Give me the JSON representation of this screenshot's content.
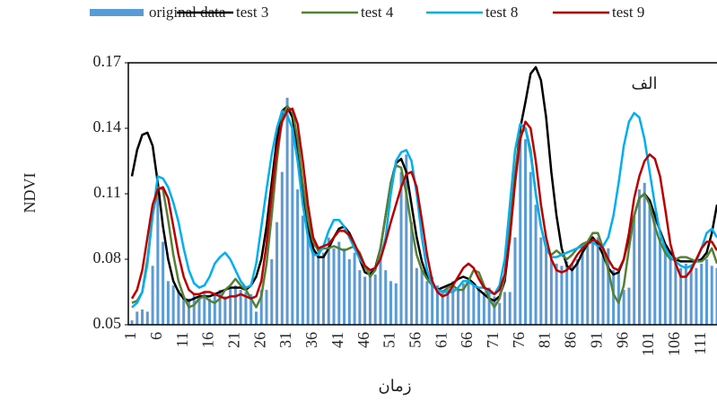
{
  "chart_data": {
    "type": "combo",
    "x_label": "زمان",
    "y_label": "NDVI",
    "annotation": "الف",
    "categories": [
      "1",
      null,
      null,
      null,
      null,
      "6",
      null,
      null,
      null,
      null,
      "11",
      null,
      null,
      null,
      null,
      "16",
      null,
      null,
      null,
      null,
      "21",
      null,
      null,
      null,
      null,
      "26",
      null,
      null,
      null,
      null,
      "31",
      null,
      null,
      null,
      null,
      "36",
      null,
      null,
      null,
      null,
      "41",
      null,
      null,
      null,
      null,
      "46",
      null,
      null,
      null,
      null,
      "51",
      null,
      null,
      null,
      null,
      "56",
      null,
      null,
      null,
      null,
      "61",
      null,
      null,
      null,
      null,
      "66",
      null,
      null,
      null,
      null,
      "71",
      null,
      null,
      null,
      null,
      "76",
      null,
      null,
      null,
      null,
      "81",
      null,
      null,
      null,
      null,
      "86",
      null,
      null,
      null,
      null,
      "91",
      null,
      null,
      null,
      null,
      "96",
      null,
      null,
      null,
      null,
      "101",
      null,
      null,
      null,
      null,
      "106",
      null,
      null,
      null,
      null,
      "111",
      null,
      null,
      null
    ],
    "ylim": [
      0.05,
      0.17
    ],
    "yticks": [
      0.05,
      0.08,
      0.11,
      0.14,
      0.17
    ],
    "series": [
      {
        "name": "original data",
        "type": "bar",
        "color": "#5b9bd5",
        "values": [
          0.052,
          0.056,
          0.057,
          0.056,
          0.077,
          0.112,
          0.088,
          0.07,
          0.068,
          0.066,
          0.063,
          0.062,
          0.064,
          0.063,
          0.065,
          0.062,
          0.064,
          0.066,
          0.063,
          0.067,
          0.068,
          0.066,
          0.065,
          0.064,
          0.056,
          0.066,
          0.066,
          0.08,
          0.097,
          0.12,
          0.154,
          0.14,
          0.112,
          0.1,
          0.098,
          0.09,
          0.085,
          0.083,
          0.09,
          0.085,
          0.088,
          0.085,
          0.08,
          0.083,
          0.075,
          0.072,
          0.075,
          0.073,
          0.082,
          0.075,
          0.07,
          0.069,
          0.12,
          0.128,
          0.097,
          0.076,
          0.075,
          0.07,
          0.072,
          0.068,
          0.066,
          0.068,
          0.07,
          0.067,
          0.069,
          0.07,
          0.068,
          0.066,
          0.065,
          0.067,
          0.063,
          0.06,
          0.065,
          0.065,
          0.09,
          0.14,
          0.135,
          0.12,
          0.105,
          0.09,
          0.085,
          0.08,
          0.078,
          0.077,
          0.079,
          0.078,
          0.08,
          0.085,
          0.088,
          0.09,
          0.09,
          0.085,
          0.085,
          0.075,
          0.075,
          0.066,
          0.067,
          0.1,
          0.112,
          0.115,
          0.105,
          0.1,
          0.09,
          0.085,
          0.08,
          0.078,
          0.076,
          0.078,
          0.077,
          0.076,
          0.078,
          0.08,
          0.077,
          0.076
        ]
      },
      {
        "name": "test 3",
        "type": "line",
        "color": "#000000",
        "values": [
          0.118,
          0.13,
          0.137,
          0.138,
          0.132,
          0.115,
          0.095,
          0.08,
          0.07,
          0.065,
          0.062,
          0.061,
          0.062,
          0.063,
          0.063,
          0.063,
          0.064,
          0.065,
          0.066,
          0.067,
          0.067,
          0.067,
          0.066,
          0.068,
          0.072,
          0.08,
          0.095,
          0.115,
          0.135,
          0.148,
          0.15,
          0.145,
          0.13,
          0.11,
          0.095,
          0.085,
          0.081,
          0.081,
          0.085,
          0.09,
          0.094,
          0.095,
          0.092,
          0.087,
          0.08,
          0.074,
          0.073,
          0.076,
          0.085,
          0.1,
          0.115,
          0.124,
          0.126,
          0.12,
          0.105,
          0.09,
          0.079,
          0.072,
          0.068,
          0.066,
          0.067,
          0.068,
          0.069,
          0.071,
          0.072,
          0.071,
          0.069,
          0.066,
          0.064,
          0.062,
          0.061,
          0.063,
          0.07,
          0.09,
          0.118,
          0.14,
          0.152,
          0.165,
          0.168,
          0.162,
          0.145,
          0.12,
          0.1,
          0.085,
          0.077,
          0.075,
          0.078,
          0.083,
          0.087,
          0.09,
          0.087,
          0.082,
          0.076,
          0.073,
          0.074,
          0.08,
          0.09,
          0.1,
          0.108,
          0.11,
          0.107,
          0.1,
          0.093,
          0.087,
          0.083,
          0.08,
          0.079,
          0.079,
          0.079,
          0.079,
          0.08,
          0.083,
          0.092,
          0.105
        ]
      },
      {
        "name": "test 4",
        "type": "line",
        "color": "#548235",
        "values": [
          0.06,
          0.061,
          0.065,
          0.08,
          0.1,
          0.113,
          0.112,
          0.098,
          0.082,
          0.07,
          0.063,
          0.058,
          0.059,
          0.062,
          0.063,
          0.061,
          0.06,
          0.062,
          0.066,
          0.068,
          0.071,
          0.068,
          0.066,
          0.062,
          0.058,
          0.063,
          0.078,
          0.1,
          0.125,
          0.145,
          0.15,
          0.148,
          0.135,
          0.115,
          0.098,
          0.088,
          0.084,
          0.085,
          0.085,
          0.086,
          0.085,
          0.084,
          0.085,
          0.086,
          0.083,
          0.077,
          0.072,
          0.075,
          0.085,
          0.1,
          0.115,
          0.123,
          0.122,
          0.11,
          0.095,
          0.082,
          0.075,
          0.071,
          0.068,
          0.066,
          0.065,
          0.067,
          0.068,
          0.066,
          0.066,
          0.07,
          0.075,
          0.074,
          0.068,
          0.062,
          0.058,
          0.062,
          0.072,
          0.095,
          0.12,
          0.137,
          0.14,
          0.13,
          0.11,
          0.095,
          0.085,
          0.082,
          0.084,
          0.082,
          0.08,
          0.082,
          0.085,
          0.087,
          0.088,
          0.092,
          0.092,
          0.085,
          0.075,
          0.064,
          0.06,
          0.068,
          0.085,
          0.1,
          0.108,
          0.11,
          0.105,
          0.095,
          0.088,
          0.083,
          0.08,
          0.08,
          0.081,
          0.081,
          0.08,
          0.079,
          0.079,
          0.081,
          0.085,
          0.078
        ]
      },
      {
        "name": "test 8",
        "type": "line",
        "color": "#00b0f0",
        "values": [
          0.058,
          0.06,
          0.065,
          0.078,
          0.1,
          0.118,
          0.117,
          0.113,
          0.106,
          0.097,
          0.085,
          0.075,
          0.069,
          0.067,
          0.068,
          0.072,
          0.078,
          0.081,
          0.083,
          0.08,
          0.075,
          0.07,
          0.067,
          0.068,
          0.078,
          0.095,
          0.112,
          0.128,
          0.14,
          0.148,
          0.146,
          0.14,
          0.125,
          0.105,
          0.09,
          0.082,
          0.082,
          0.086,
          0.093,
          0.098,
          0.098,
          0.095,
          0.09,
          0.085,
          0.08,
          0.077,
          0.075,
          0.076,
          0.08,
          0.09,
          0.11,
          0.125,
          0.129,
          0.13,
          0.125,
          0.11,
          0.09,
          0.075,
          0.068,
          0.066,
          0.065,
          0.065,
          0.065,
          0.067,
          0.07,
          0.07,
          0.068,
          0.067,
          0.067,
          0.065,
          0.064,
          0.068,
          0.08,
          0.105,
          0.13,
          0.142,
          0.14,
          0.128,
          0.11,
          0.095,
          0.085,
          0.081,
          0.081,
          0.082,
          0.083,
          0.084,
          0.085,
          0.086,
          0.087,
          0.088,
          0.086,
          0.086,
          0.09,
          0.1,
          0.115,
          0.132,
          0.143,
          0.147,
          0.145,
          0.135,
          0.12,
          0.105,
          0.092,
          0.085,
          0.081,
          0.079,
          0.077,
          0.076,
          0.077,
          0.079,
          0.085,
          0.092,
          0.094,
          0.09
        ]
      },
      {
        "name": "test 9",
        "type": "line",
        "color": "#c00000",
        "values": [
          0.062,
          0.066,
          0.075,
          0.09,
          0.105,
          0.112,
          0.113,
          0.108,
          0.095,
          0.082,
          0.072,
          0.066,
          0.064,
          0.064,
          0.065,
          0.065,
          0.064,
          0.063,
          0.062,
          0.063,
          0.063,
          0.064,
          0.063,
          0.062,
          0.063,
          0.07,
          0.087,
          0.11,
          0.13,
          0.143,
          0.148,
          0.149,
          0.142,
          0.125,
          0.105,
          0.09,
          0.085,
          0.086,
          0.087,
          0.09,
          0.093,
          0.093,
          0.091,
          0.087,
          0.082,
          0.077,
          0.075,
          0.076,
          0.08,
          0.088,
          0.097,
          0.105,
          0.113,
          0.119,
          0.12,
          0.113,
          0.098,
          0.082,
          0.07,
          0.065,
          0.063,
          0.064,
          0.068,
          0.072,
          0.076,
          0.078,
          0.076,
          0.071,
          0.067,
          0.066,
          0.064,
          0.066,
          0.073,
          0.09,
          0.115,
          0.135,
          0.143,
          0.14,
          0.125,
          0.105,
          0.09,
          0.08,
          0.075,
          0.074,
          0.075,
          0.078,
          0.082,
          0.085,
          0.087,
          0.089,
          0.088,
          0.085,
          0.08,
          0.076,
          0.075,
          0.08,
          0.092,
          0.108,
          0.118,
          0.125,
          0.128,
          0.126,
          0.118,
          0.103,
          0.087,
          0.078,
          0.072,
          0.072,
          0.075,
          0.08,
          0.085,
          0.088,
          0.088,
          0.084
        ]
      }
    ]
  }
}
